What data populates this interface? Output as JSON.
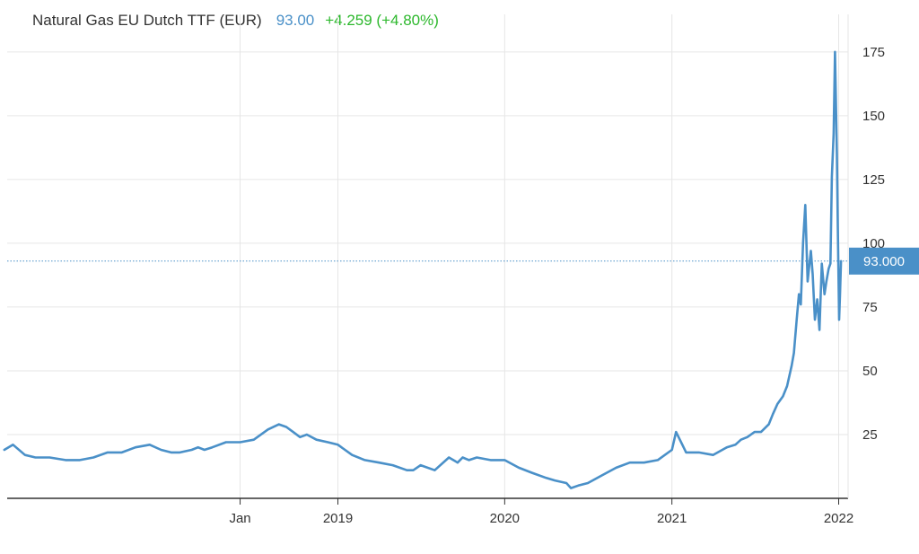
{
  "header": {
    "title": "Natural Gas EU Dutch TTF (EUR)",
    "price": "93.00",
    "change": "+4.259 (+4.80%)"
  },
  "colors": {
    "line": "#4a90c8",
    "change_positive": "#2db82d",
    "grid": "#e6e6e6",
    "axis": "#333333",
    "badge": "#4a90c8"
  },
  "chart_data": {
    "type": "line",
    "title": "Natural Gas EU Dutch TTF (EUR)",
    "current_value_label": "93.000",
    "current_value": 93,
    "x_tick_labels": [
      "Jan",
      "2019",
      "2020",
      "2021",
      "2022"
    ],
    "x_tick_dates": [
      "2018-06-01",
      "2019-01-01",
      "2020-01-01",
      "2021-01-01",
      "2022-01-01"
    ],
    "xlim": [
      "2017-01-01",
      "2022-01-10"
    ],
    "y_ticks": [
      25,
      50,
      75,
      100,
      125,
      150,
      175
    ],
    "ylim": [
      0,
      195
    ],
    "grid": true,
    "series": [
      {
        "x": [
          "2017-01-01",
          "2017-01-20",
          "2017-02-15",
          "2017-03-10",
          "2017-04-10",
          "2017-05-15",
          "2017-06-15",
          "2017-07-15",
          "2017-08-15",
          "2017-09-15",
          "2017-10-15",
          "2017-11-15",
          "2017-12-10",
          "2018-01-01",
          "2018-01-20",
          "2018-02-15",
          "2018-03-01",
          "2018-03-15",
          "2018-04-01",
          "2018-05-01",
          "2018-06-01",
          "2018-07-01",
          "2018-08-01",
          "2018-08-25",
          "2018-09-10",
          "2018-09-25",
          "2018-10-10",
          "2018-10-25",
          "2018-11-15",
          "2018-12-10",
          "2019-01-01",
          "2019-02-01",
          "2019-03-01",
          "2019-04-01",
          "2019-05-01",
          "2019-06-01",
          "2019-06-15",
          "2019-07-01",
          "2019-08-01",
          "2019-09-01",
          "2019-09-20",
          "2019-10-01",
          "2019-10-15",
          "2019-11-01",
          "2019-12-01",
          "2020-01-01",
          "2020-02-01",
          "2020-03-01",
          "2020-04-01",
          "2020-04-20",
          "2020-05-15",
          "2020-05-25",
          "2020-06-10",
          "2020-07-01",
          "2020-08-01",
          "2020-09-01",
          "2020-10-01",
          "2020-11-01",
          "2020-12-01",
          "2021-01-01",
          "2021-01-10",
          "2021-02-01",
          "2021-03-01",
          "2021-04-01",
          "2021-05-01",
          "2021-05-20",
          "2021-06-01",
          "2021-06-15",
          "2021-07-01",
          "2021-07-15",
          "2021-08-01",
          "2021-08-10",
          "2021-08-20",
          "2021-09-01",
          "2021-09-10",
          "2021-09-20",
          "2021-09-25",
          "2021-10-01",
          "2021-10-06",
          "2021-10-10",
          "2021-10-15",
          "2021-10-20",
          "2021-10-25",
          "2021-11-01",
          "2021-11-05",
          "2021-11-10",
          "2021-11-15",
          "2021-11-20",
          "2021-11-25",
          "2021-12-01",
          "2021-12-05",
          "2021-12-10",
          "2021-12-14",
          "2021-12-17",
          "2021-12-21",
          "2021-12-24",
          "2021-12-28",
          "2021-12-30",
          "2022-01-02",
          "2022-01-04",
          "2022-01-06"
        ],
        "values": [
          19,
          21,
          17,
          16,
          16,
          15,
          15,
          16,
          18,
          18,
          20,
          21,
          19,
          18,
          18,
          19,
          20,
          19,
          20,
          22,
          22,
          23,
          27,
          29,
          28,
          26,
          24,
          25,
          23,
          22,
          21,
          17,
          15,
          14,
          13,
          11,
          11,
          13,
          11,
          16,
          14,
          16,
          15,
          16,
          15,
          15,
          12,
          10,
          8,
          7,
          6,
          4,
          5,
          6,
          9,
          12,
          14,
          14,
          15,
          19,
          26,
          18,
          18,
          17,
          20,
          21,
          23,
          24,
          26,
          26,
          29,
          33,
          37,
          40,
          44,
          52,
          57,
          70,
          80,
          76,
          100,
          115,
          85,
          97,
          88,
          70,
          78,
          66,
          92,
          80,
          85,
          90,
          92,
          126,
          143,
          175,
          135,
          107,
          70,
          80,
          93
        ]
      }
    ]
  }
}
